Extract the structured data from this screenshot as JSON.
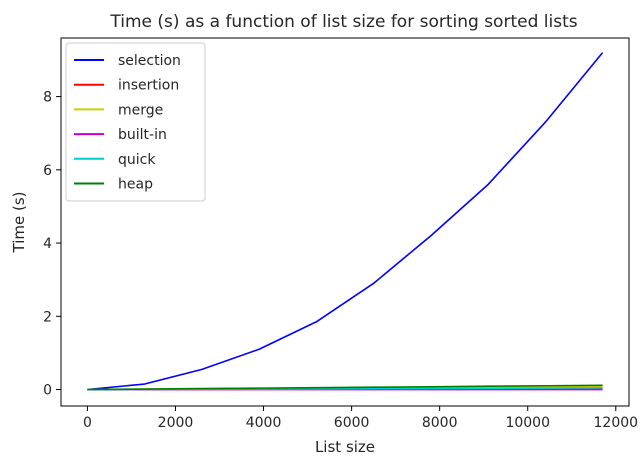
{
  "chart_data": {
    "type": "line",
    "title": "Time (s) as a function of list size for sorting sorted lists",
    "xlabel": "List size",
    "ylabel": "Time (s)",
    "xlim": [
      -600,
      12300
    ],
    "ylim": [
      -0.45,
      9.6
    ],
    "xticks": [
      0,
      2000,
      4000,
      6000,
      8000,
      10000,
      12000
    ],
    "xtick_labels": [
      "0",
      "2000",
      "4000",
      "6000",
      "8000",
      "10000",
      "12000"
    ],
    "yticks": [
      0,
      2,
      4,
      6,
      8
    ],
    "ytick_labels": [
      "0",
      "2",
      "4",
      "6",
      "8"
    ],
    "grid": false,
    "legend_position": "upper left",
    "series": [
      {
        "name": "selection",
        "color": "#0000ff",
        "x": [
          0,
          1300,
          2600,
          3900,
          5200,
          6500,
          7800,
          9100,
          10400,
          11700
        ],
        "y": [
          0.0,
          0.15,
          0.55,
          1.1,
          1.85,
          2.9,
          4.2,
          5.6,
          7.3,
          9.2
        ]
      },
      {
        "name": "insertion",
        "color": "#ff0000",
        "x": [
          0,
          1300,
          2600,
          3900,
          5200,
          6500,
          7800,
          9100,
          10400,
          11700
        ],
        "y": [
          0.0,
          0.003,
          0.006,
          0.009,
          0.012,
          0.015,
          0.018,
          0.021,
          0.024,
          0.027
        ]
      },
      {
        "name": "merge",
        "color": "#cccc00",
        "x": [
          0,
          1300,
          2600,
          3900,
          5200,
          6500,
          7800,
          9100,
          10400,
          11700
        ],
        "y": [
          0.0,
          0.01,
          0.02,
          0.03,
          0.04,
          0.05,
          0.06,
          0.07,
          0.08,
          0.09
        ]
      },
      {
        "name": "built-in",
        "color": "#cc00cc",
        "x": [
          0,
          1300,
          2600,
          3900,
          5200,
          6500,
          7800,
          9100,
          10400,
          11700
        ],
        "y": [
          0.0,
          0.0,
          0.0,
          0.0,
          0.0,
          0.0,
          0.0,
          0.0,
          0.0,
          0.0
        ]
      },
      {
        "name": "quick",
        "color": "#00cccc",
        "x": [
          0,
          1300,
          2600,
          3900,
          5200,
          6500,
          7800,
          9100,
          10400,
          11700
        ],
        "y": [
          0.0,
          0.005,
          0.01,
          0.015,
          0.02,
          0.025,
          0.03,
          0.035,
          0.04,
          0.045
        ]
      },
      {
        "name": "heap",
        "color": "#008000",
        "x": [
          0,
          1300,
          2600,
          3900,
          5200,
          6500,
          7800,
          9100,
          10400,
          11700
        ],
        "y": [
          0.0,
          0.012,
          0.025,
          0.038,
          0.05,
          0.063,
          0.076,
          0.09,
          0.103,
          0.116
        ]
      }
    ]
  }
}
